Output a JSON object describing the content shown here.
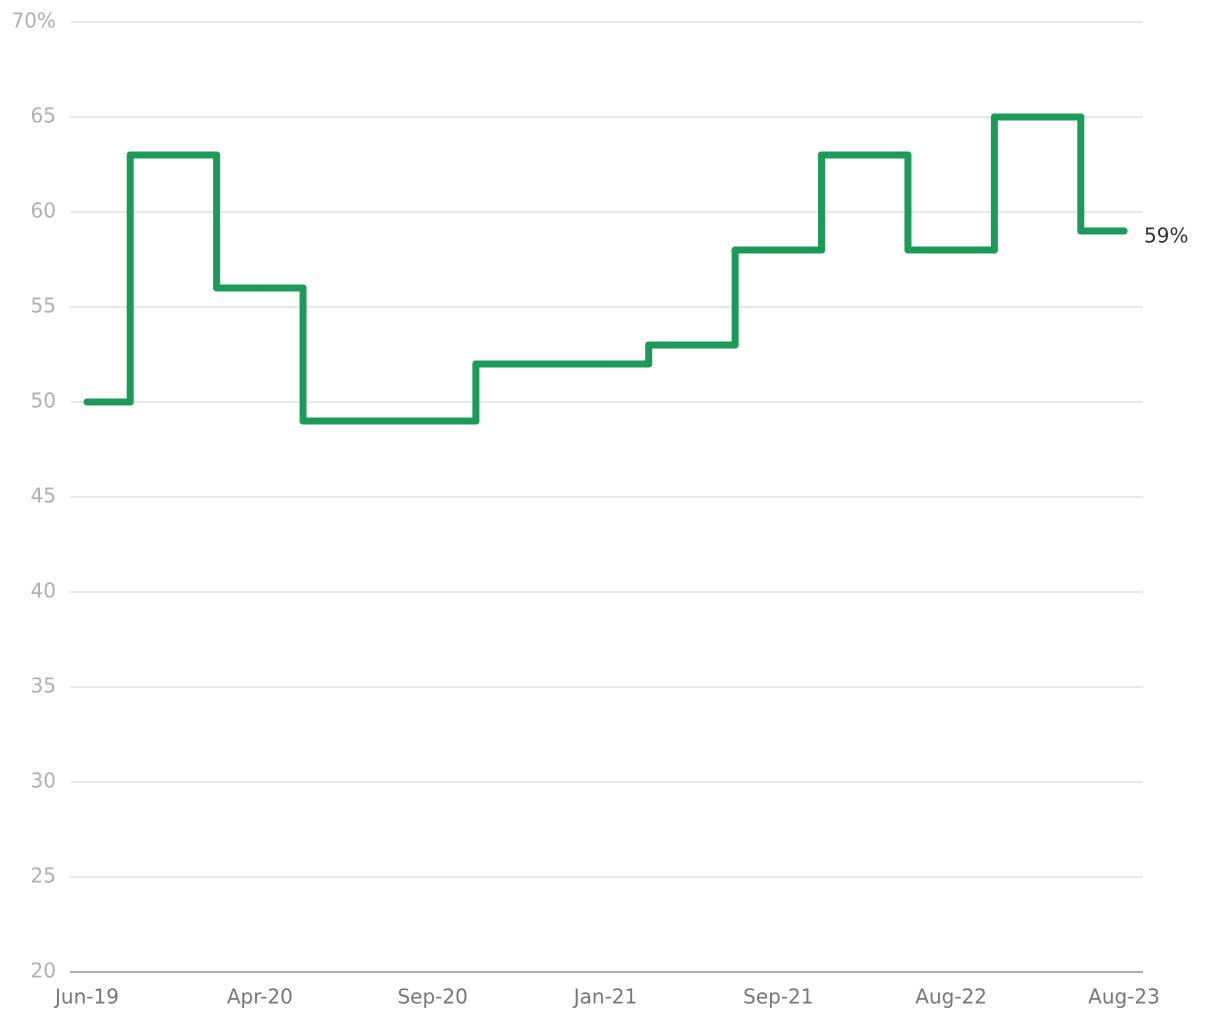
{
  "chart_data": {
    "type": "step",
    "categories": [
      "Jun-19",
      null,
      null,
      null,
      "Apr-20",
      null,
      null,
      null,
      "Sep-20",
      null,
      null,
      null,
      "Jan-21",
      null,
      null,
      null,
      "Sep-21",
      null,
      null,
      null,
      "Aug-22",
      null,
      null,
      null,
      "Aug-23"
    ],
    "series": [
      {
        "color": "#1b9a58",
        "values": [
          50,
          63,
          63,
          56,
          56,
          49,
          49,
          49,
          49,
          52,
          52,
          52,
          52,
          53,
          53,
          58,
          58,
          63,
          63,
          58,
          58,
          65,
          65,
          59,
          59
        ],
        "value_labels": [
          null,
          null,
          null,
          null,
          null,
          null,
          null,
          null,
          null,
          null,
          null,
          null,
          null,
          null,
          null,
          null,
          null,
          null,
          null,
          null,
          null,
          null,
          null,
          null,
          "59%"
        ]
      }
    ],
    "ylim": [
      20,
      70
    ],
    "yticks": [
      20,
      25,
      30,
      35,
      40,
      45,
      50,
      55,
      60,
      65,
      {
        "value": 70,
        "label": "70%"
      }
    ],
    "grid": true
  }
}
